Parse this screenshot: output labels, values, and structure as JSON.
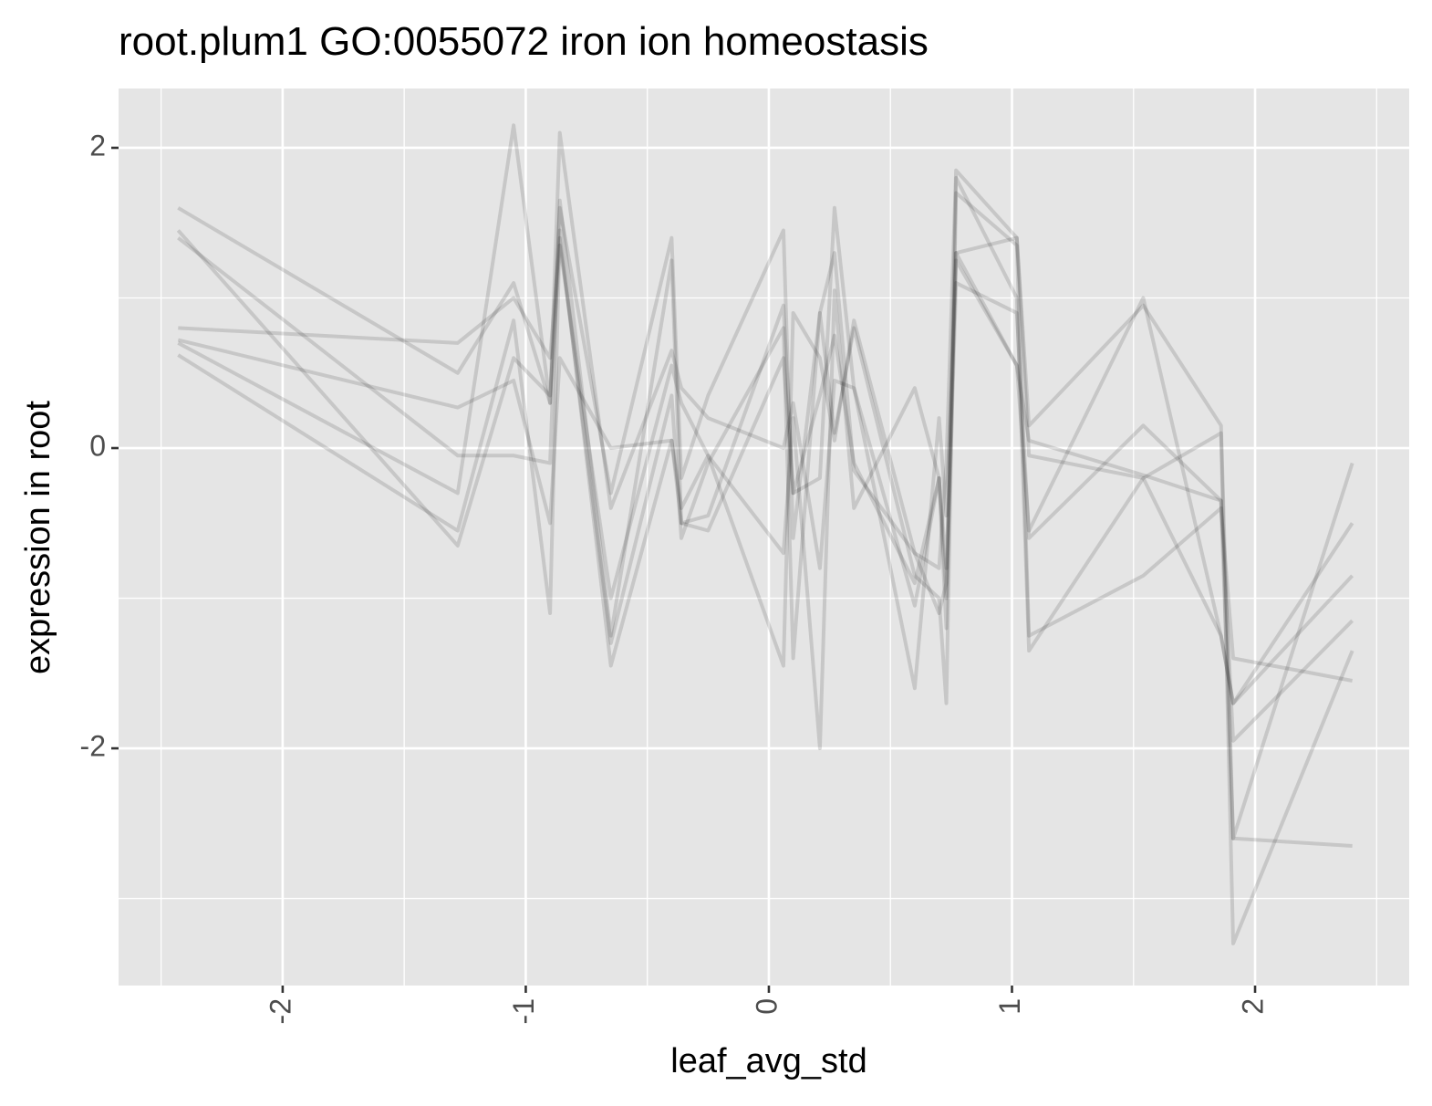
{
  "chart_data": {
    "type": "line",
    "title": "root.plum1 GO:0055072 iron ion homeostasis",
    "x_label": "leaf_avg_std",
    "y_label": "expression in root",
    "x": [
      -2.43,
      -1.28,
      -1.05,
      -0.9,
      -0.86,
      -0.65,
      -0.4,
      -0.36,
      -0.25,
      0.06,
      0.1,
      0.21,
      0.27,
      0.35,
      0.6,
      0.7,
      0.73,
      0.77,
      1.02,
      1.07,
      1.54,
      1.86,
      1.91,
      2.4
    ],
    "series": [
      {
        "color": "#000000",
        "values": [
          1.6,
          0.5,
          1.1,
          0.3,
          1.6,
          -0.3,
          1.4,
          -0.2,
          0.35,
          1.45,
          -0.6,
          0.9,
          1.3,
          -0.15,
          -0.7,
          -0.8,
          -0.1,
          1.85,
          1.4,
          0.15,
          0.95,
          0.15,
          -2.6,
          -0.1
        ]
      },
      {
        "color": "#000000",
        "values": [
          1.4,
          -0.05,
          -0.05,
          -0.1,
          1.65,
          -1.25,
          1.25,
          -0.5,
          -0.45,
          0.95,
          -0.3,
          -0.2,
          1.6,
          0.4,
          -1.05,
          -0.2,
          -1.2,
          1.8,
          1.0,
          -1.35,
          -0.2,
          0.1,
          -3.3,
          -1.35
        ]
      },
      {
        "color": "#000000",
        "values": [
          0.8,
          0.7,
          1.0,
          0.6,
          1.4,
          -1.3,
          0.35,
          -0.6,
          -0.1,
          0.8,
          -1.4,
          0.9,
          0.1,
          0.8,
          -0.85,
          -1.0,
          -1.7,
          1.7,
          1.35,
          -1.25,
          -0.85,
          -0.4,
          -1.4,
          -1.55
        ]
      },
      {
        "color": "#000000",
        "values": [
          0.7,
          -0.3,
          2.15,
          0.3,
          2.1,
          -0.4,
          0.65,
          0.4,
          0.2,
          0.0,
          0.3,
          -0.8,
          0.45,
          0.4,
          -1.6,
          0.2,
          -0.45,
          1.3,
          0.55,
          -0.55,
          1.0,
          -1.25,
          -1.7,
          -0.85
        ]
      },
      {
        "color": "#000000",
        "values": [
          0.62,
          -0.55,
          0.85,
          -1.1,
          1.45,
          -1.45,
          0.05,
          -0.5,
          -0.55,
          0.6,
          -0.3,
          0.35,
          0.75,
          -0.1,
          -0.9,
          -0.2,
          -1.0,
          1.1,
          0.9,
          -0.6,
          0.15,
          -0.35,
          -1.95,
          -1.15
        ]
      },
      {
        "color": "#000000",
        "values": [
          0.72,
          0.27,
          0.45,
          -0.5,
          0.6,
          0.0,
          0.05,
          -0.4,
          -0.05,
          -0.7,
          0.2,
          -2.0,
          1.05,
          -0.4,
          0.4,
          -0.2,
          -0.8,
          1.25,
          0.55,
          0.05,
          -0.18,
          -0.35,
          -2.6,
          -2.65
        ]
      },
      {
        "color": "#000000",
        "values": [
          1.45,
          -0.65,
          0.6,
          0.35,
          1.35,
          -1.0,
          0.55,
          0.3,
          -0.05,
          -1.45,
          0.9,
          0.6,
          0.05,
          0.85,
          -0.7,
          -1.1,
          -0.9,
          1.3,
          1.4,
          -0.05,
          -0.2,
          -1.25,
          -1.7,
          -0.5
        ]
      }
    ],
    "alpha": 0.13,
    "xlim": [
      -2.675,
      2.634
    ],
    "ylim": [
      -3.58,
      2.395
    ],
    "xticks": [
      -2,
      -1,
      0,
      1,
      2
    ],
    "yticks": [
      -2,
      0,
      2
    ],
    "grid": true
  }
}
